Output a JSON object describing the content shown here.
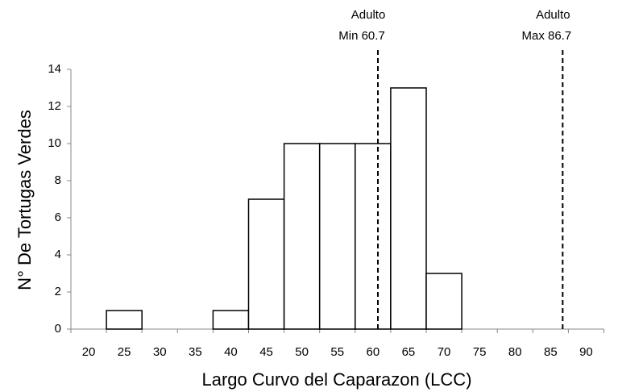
{
  "chart_data": {
    "type": "bar",
    "x_label": "Largo Curvo del Caparazon (LCC)",
    "y_label": "N° De Tortugas Verdes",
    "categories": [
      20,
      25,
      30,
      35,
      40,
      45,
      50,
      55,
      60,
      65,
      70,
      75,
      80,
      85,
      90
    ],
    "values": [
      0,
      1,
      0,
      0,
      1,
      7,
      10,
      10,
      10,
      13,
      3,
      0,
      0,
      0,
      0
    ],
    "color": "#ffffff",
    "ylim": [
      0,
      14
    ],
    "yticks": [
      0,
      2,
      4,
      6,
      8,
      10,
      12,
      14
    ],
    "grid": false,
    "annotations": [
      {
        "value": 60.7,
        "lines": [
          "Adulto",
          "Min 60.7"
        ]
      },
      {
        "value": 86.7,
        "lines": [
          "Adulto",
          "Max 86.7"
        ]
      }
    ]
  }
}
